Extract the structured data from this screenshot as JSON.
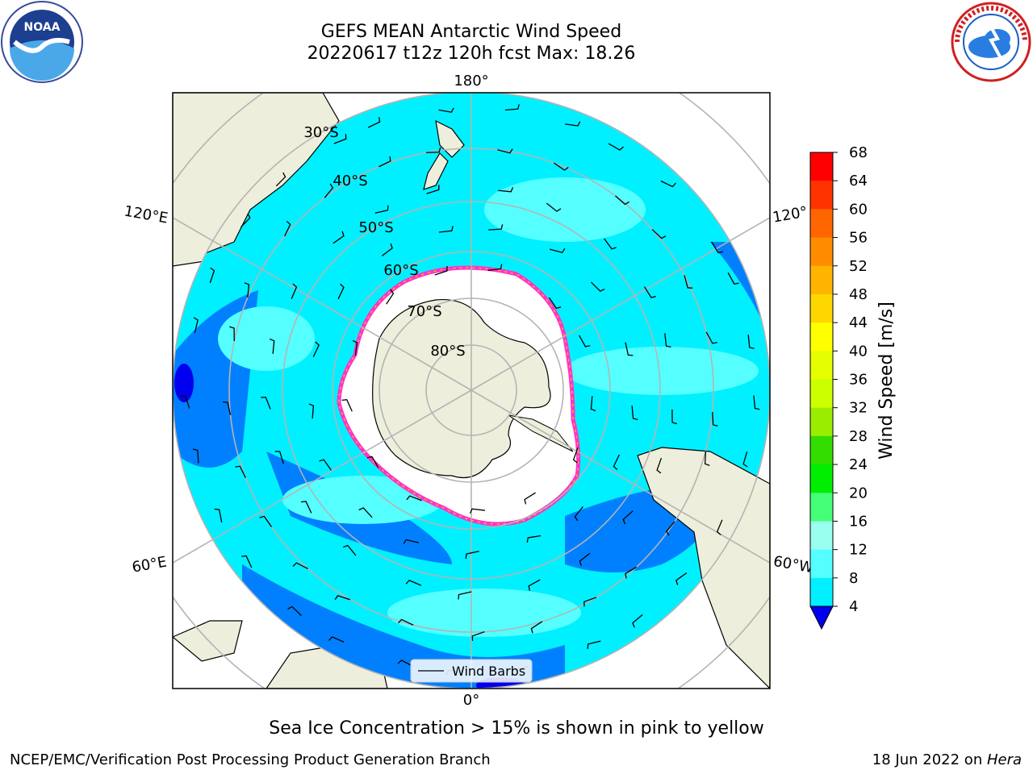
{
  "header": {
    "title_line1": "GEFS MEAN Antarctic Wind Speed",
    "title_line2": "20220617 t12z 120h fcst   Max: 18.26"
  },
  "map": {
    "lon_labels": {
      "top": "180°",
      "bottom": "0°",
      "left_upper": "120°E",
      "left_lower": "60°E",
      "right_upper": "120°",
      "right_lower": "60°W"
    },
    "lat_labels": [
      "30°S",
      "40°S",
      "50°S",
      "60°S",
      "70°S",
      "80°S"
    ],
    "legend_label": "Wind Barbs"
  },
  "colorbar": {
    "label": "Wind Speed [m/s]",
    "ticks": [
      "68",
      "64",
      "60",
      "56",
      "52",
      "48",
      "44",
      "40",
      "36",
      "32",
      "28",
      "24",
      "20",
      "16",
      "12",
      "8",
      "4"
    ],
    "colors": [
      "#ff0000",
      "#ff3300",
      "#ff6600",
      "#ff8c00",
      "#ffb400",
      "#ffd700",
      "#ffff00",
      "#e6ff00",
      "#ccff00",
      "#99ee00",
      "#33dd00",
      "#00ee00",
      "#44ff77",
      "#99ffee",
      "#55ffff",
      "#00f0ff",
      "#0080ff",
      "#0000ee"
    ]
  },
  "logos": {
    "left": {
      "text": "NOAA",
      "icon": "noaa-logo-icon"
    },
    "right": {
      "icon": "nws-logo-icon"
    }
  },
  "note": "Sea Ice Concentration > 15% is shown in pink to yellow",
  "footer": {
    "left": "NCEP/EMC/Verification Post Processing Product Generation Branch",
    "right_date": "18 Jun 2022 on ",
    "right_host": "Hera"
  }
}
